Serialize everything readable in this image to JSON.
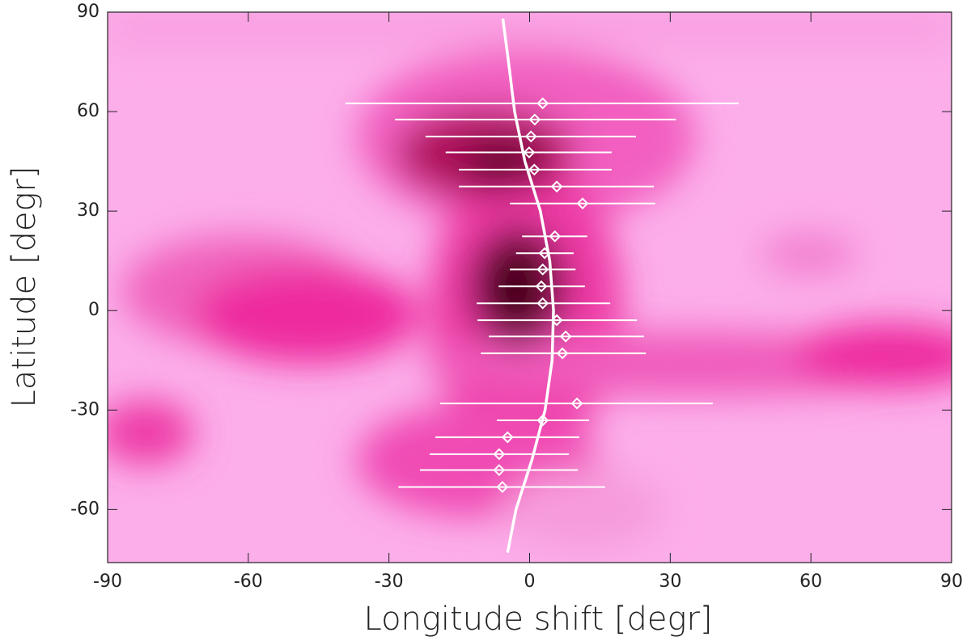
{
  "chart_data": {
    "type": "scatter",
    "x_label": "Longitude shift [degr]",
    "y_label": "Latitude [degr]",
    "xlim": [
      -90,
      90
    ],
    "ylim": [
      -76,
      90
    ],
    "xticks": [
      -90,
      -60,
      -30,
      0,
      30,
      60,
      90
    ],
    "yticks": [
      -60,
      -30,
      0,
      30,
      60,
      90
    ],
    "series": [
      {
        "color": "#ffffff",
        "x": [
          2.8,
          1.1,
          0.3,
          -0.1,
          1.0,
          5.8,
          11.3,
          5.4,
          3.2,
          2.8,
          2.5,
          2.8,
          5.8,
          7.7,
          7.0,
          10.1,
          2.8,
          -4.7,
          -6.5,
          -6.5,
          -5.8
        ],
        "values": [
          62.5,
          57.6,
          52.5,
          47.7,
          42.5,
          37.4,
          32.3,
          22.4,
          17.3,
          12.4,
          7.3,
          2.2,
          -2.9,
          -7.8,
          -12.9,
          -28.0,
          -33.1,
          -38.2,
          -43.3,
          -48.1,
          -53.2
        ],
        "x_low": [
          -39.3,
          -28.7,
          -22.2,
          -17.9,
          -15.1,
          -15.1,
          -4.2,
          -1.6,
          -2.9,
          -4.2,
          -6.6,
          -11.3,
          -11.1,
          -8.7,
          -10.4,
          -19.1,
          -7.0,
          -20.1,
          -21.3,
          -23.4,
          -28.0
        ],
        "x_high": [
          44.6,
          31.2,
          22.7,
          17.5,
          17.5,
          26.5,
          26.8,
          12.3,
          9.4,
          9.8,
          11.8,
          17.2,
          22.9,
          24.4,
          24.8,
          39.1,
          12.7,
          10.6,
          8.4,
          10.3,
          16.1
        ]
      }
    ],
    "curve": {
      "color": "#ffffff",
      "x": [
        -5.7,
        -4.5,
        -3.2,
        -1,
        2.3,
        4.3,
        5.1,
        4.8,
        3.3,
        0.5,
        -2.9,
        -4.7
      ],
      "values": [
        88,
        75,
        60,
        45,
        30,
        15,
        0,
        -15,
        -30,
        -45,
        -60,
        -73
      ]
    }
  }
}
